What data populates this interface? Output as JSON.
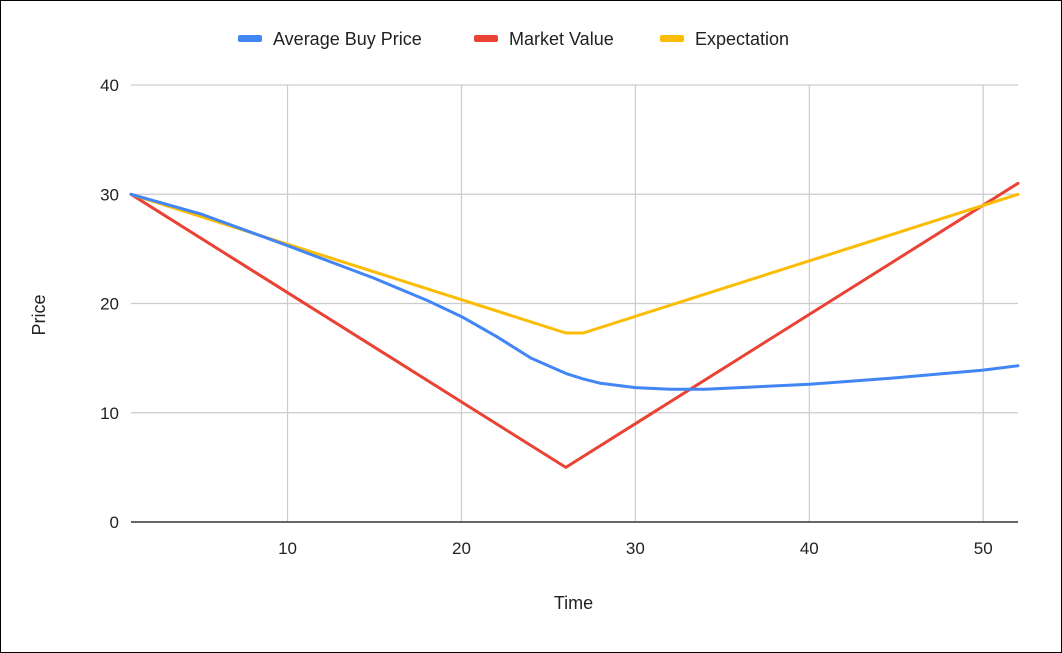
{
  "chart_data": {
    "type": "line",
    "xlabel": "Time",
    "ylabel": "Price",
    "xlim": [
      1,
      52
    ],
    "ylim": [
      0,
      40
    ],
    "x_ticks": [
      10,
      20,
      30,
      40,
      50
    ],
    "y_ticks": [
      0,
      10,
      20,
      30,
      40
    ],
    "grid": true,
    "legend_position": "top-center",
    "series": [
      {
        "name": "Average Buy Price",
        "color": "#4285F4",
        "points": [
          [
            1,
            30
          ],
          [
            5,
            28.2
          ],
          [
            10,
            25.3
          ],
          [
            15,
            22.3
          ],
          [
            18,
            20.3
          ],
          [
            20,
            18.8
          ],
          [
            22,
            17
          ],
          [
            24,
            15
          ],
          [
            26,
            13.6
          ],
          [
            27,
            13.1
          ],
          [
            28,
            12.7
          ],
          [
            30,
            12.3
          ],
          [
            32,
            12.15
          ],
          [
            34,
            12.15
          ],
          [
            36,
            12.3
          ],
          [
            40,
            12.6
          ],
          [
            45,
            13.2
          ],
          [
            50,
            13.9
          ],
          [
            52,
            14.3
          ]
        ]
      },
      {
        "name": "Market Value",
        "color": "#EA4335",
        "points": [
          [
            1,
            30
          ],
          [
            26,
            5
          ],
          [
            52,
            31
          ]
        ]
      },
      {
        "name": "Expectation",
        "color": "#FBBC04",
        "points": [
          [
            1,
            30
          ],
          [
            26,
            17.3
          ],
          [
            27,
            17.3
          ],
          [
            52,
            30
          ]
        ]
      }
    ]
  }
}
